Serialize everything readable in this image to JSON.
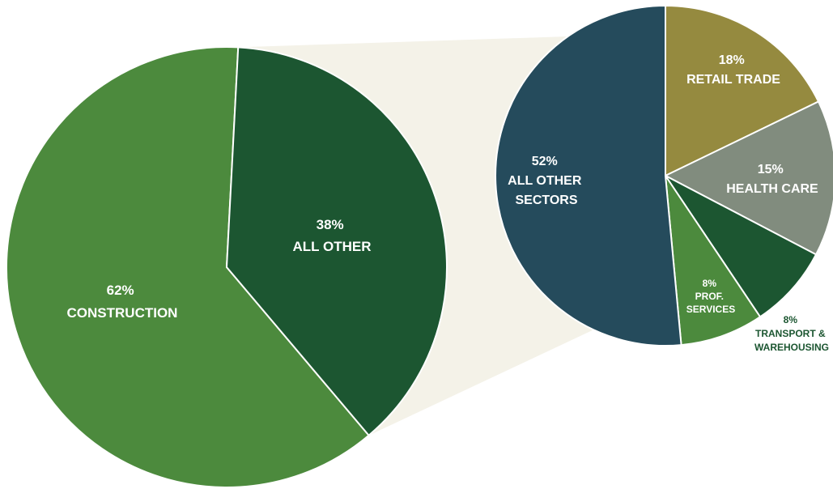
{
  "chart_data": [
    {
      "type": "pie",
      "slices": [
        {
          "name": "CONSTRUCTION",
          "value": 62,
          "label": "62%",
          "color": "#4c8a3d"
        },
        {
          "name": "ALL OTHER",
          "value": 38,
          "label": "38%",
          "color": "#1c5631"
        }
      ]
    },
    {
      "type": "pie",
      "slices": [
        {
          "name": "RETAIL TRADE",
          "value": 18,
          "label": "18%",
          "color": "#958a3f"
        },
        {
          "name": "HEALTH CARE",
          "value": 15,
          "label": "15%",
          "color": "#818c7e"
        },
        {
          "name_lines": [
            "TRANSPORT &",
            "WAREHOUSING"
          ],
          "value": 8,
          "label": "8%",
          "color": "#1c5631"
        },
        {
          "name_lines": [
            "PROF.",
            "SERVICES"
          ],
          "value": 8,
          "label": "8%",
          "color": "#4c8a3d"
        },
        {
          "name_lines": [
            "ALL OTHER",
            "SECTORS"
          ],
          "value": 52,
          "label": "52%",
          "color": "#254b5c"
        }
      ]
    }
  ],
  "connector_color": "#f4f2e8"
}
